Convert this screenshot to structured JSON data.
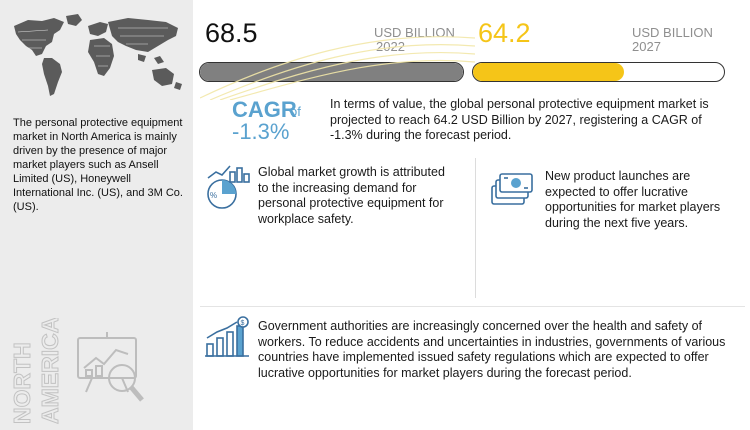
{
  "sidebar": {
    "description": "The personal protective equipment market in North America is mainly driven by the presence of major market players such as Ansell Limited (US), Honeywell International Inc. (US), and 3M Co. (US).",
    "region_line1": "NORTH",
    "region_line2": "AMERICA",
    "icons": [
      "world-map-icon",
      "analytics-magnifier-icon"
    ]
  },
  "stats": {
    "start": {
      "value": "68.5",
      "unit_line1": "USD BILLION",
      "unit_line2": "2022",
      "fill_fraction": 1.0,
      "color": "#808080"
    },
    "end": {
      "value": "64.2",
      "unit_line1": "USD BILLION",
      "unit_line2": "2027",
      "fill_fraction": 0.6,
      "color": "#f5c518"
    }
  },
  "cagr": {
    "label": "CAGR",
    "of": "of",
    "value": "-1.3%",
    "color": "#5aa2cf"
  },
  "summary": "In terms of value, the global personal protective equipment market is projected to reach 64.2 USD Billion by 2027, registering a CAGR of -1.3% during the forecast period.",
  "cards": [
    {
      "icon": "growth-pie-chart-icon",
      "text": "Global market growth is attributed to the increasing demand for personal protective equipment for workplace safety."
    },
    {
      "icon": "money-stack-icon",
      "text": "New product launches are expected to offer lucrative opportunities for market players during the next five years."
    },
    {
      "icon": "bar-chart-dollar-icon",
      "text": "Government authorities are increasingly concerned over the health and safety of workers. To reduce accidents and uncertainties in industries, governments of various countries have implemented issued safety regulations which are expected to offer lucrative opportunities for market players during the forecast period."
    }
  ]
}
